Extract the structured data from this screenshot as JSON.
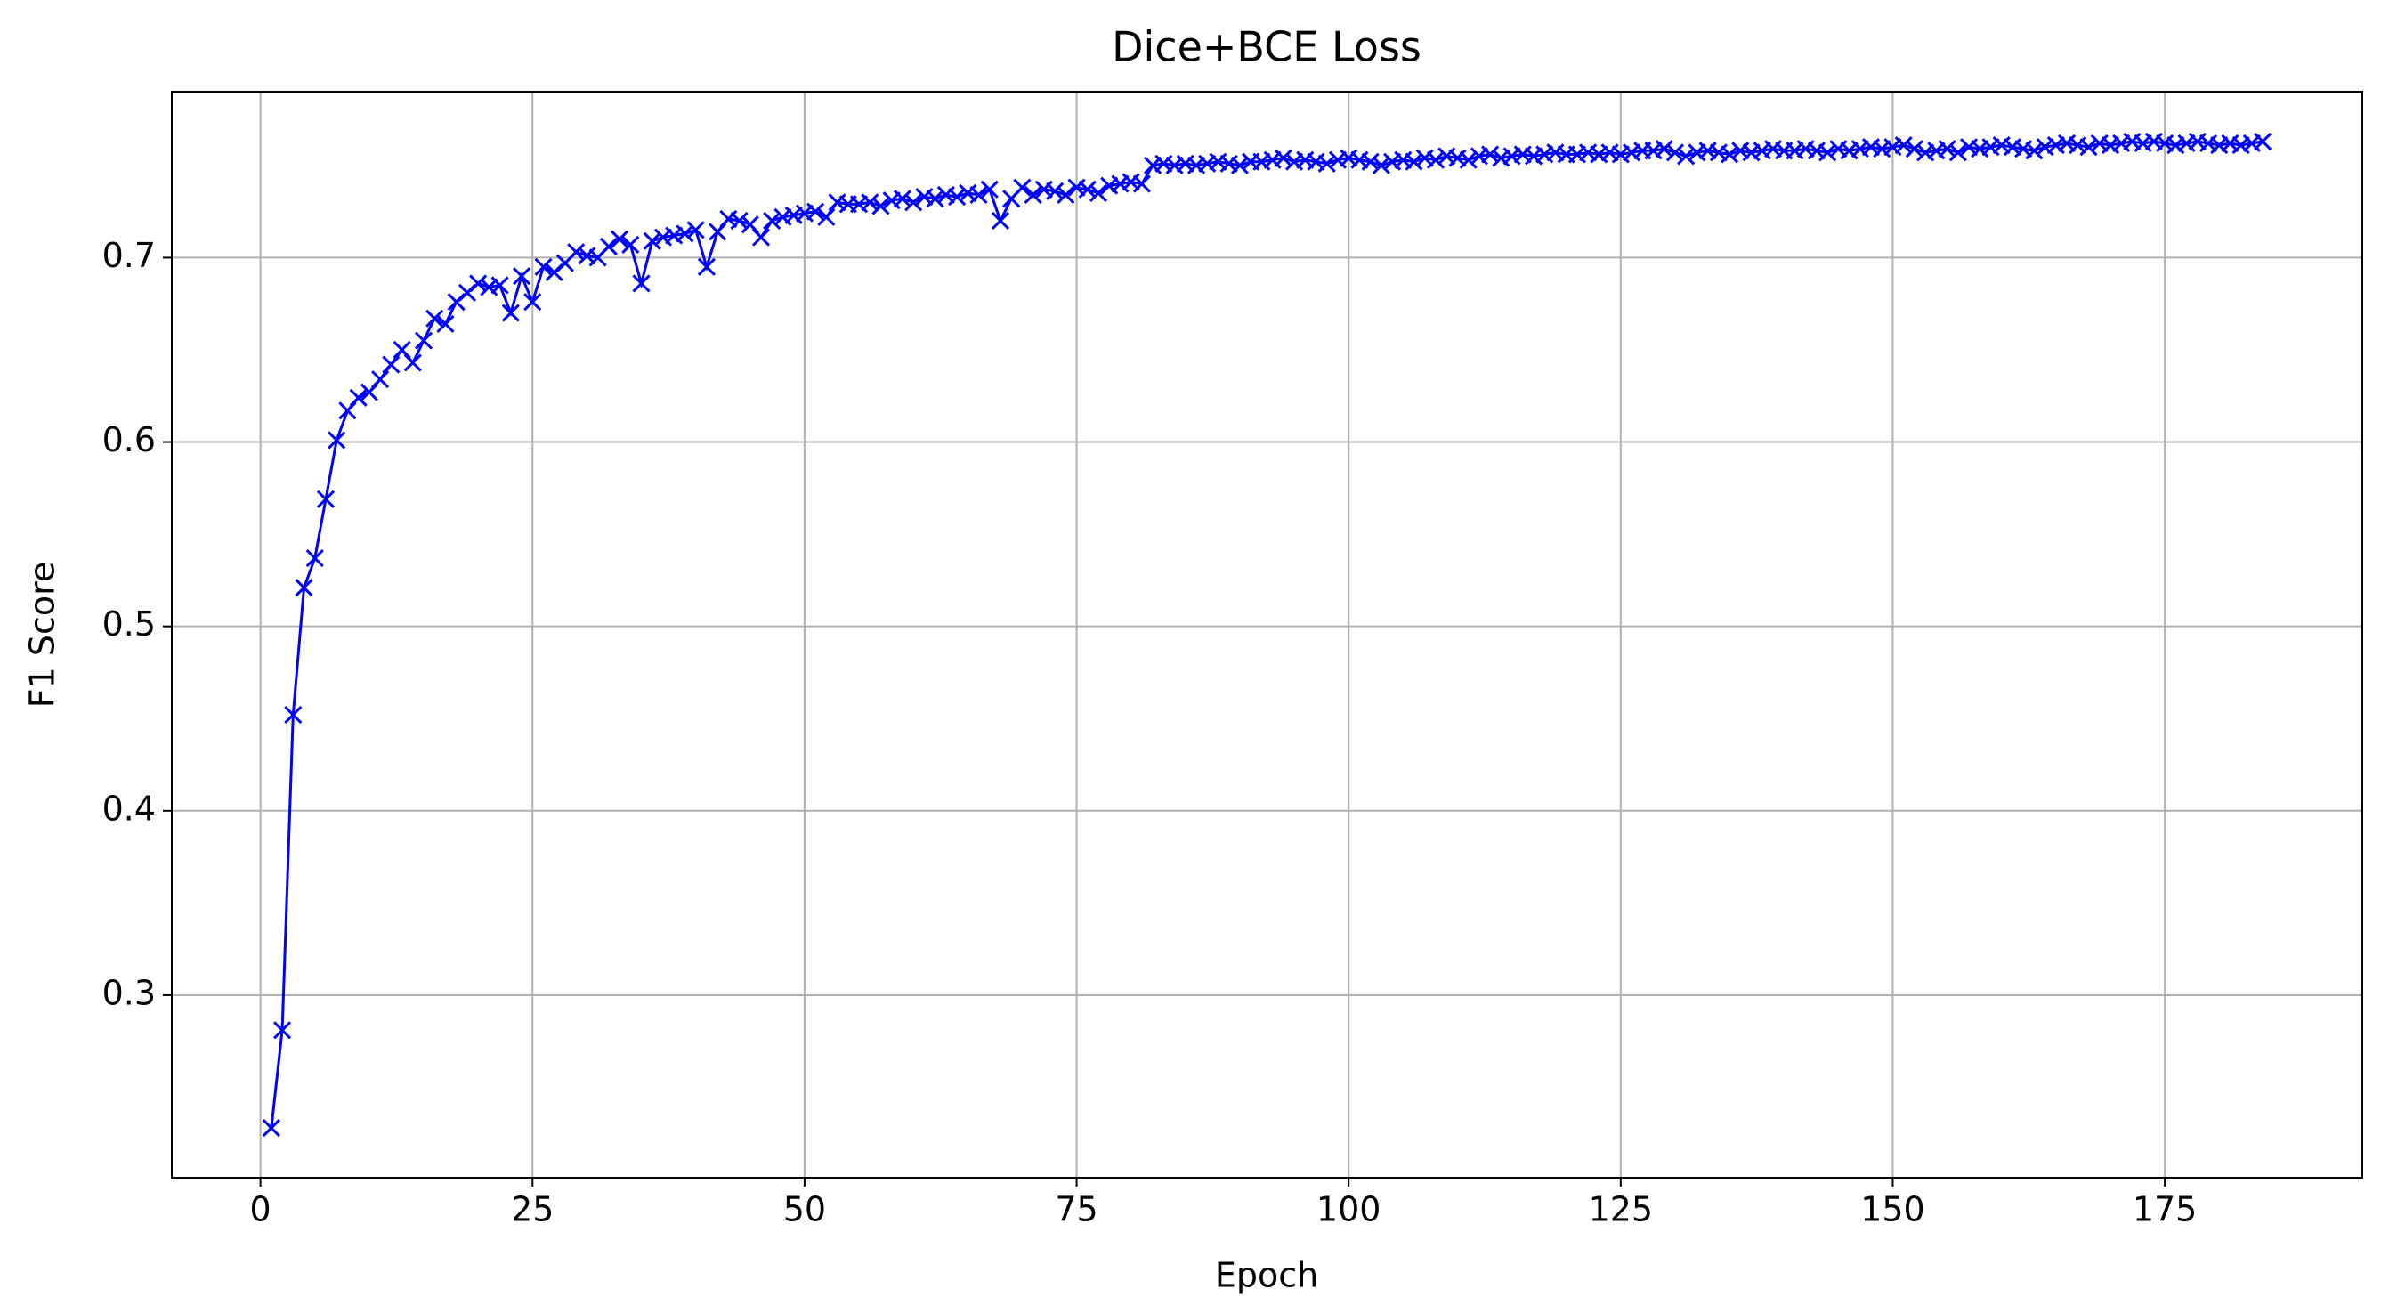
{
  "chart_data": {
    "type": "line",
    "title": "Dice+BCE Loss",
    "x_label": "Epoch",
    "y_label": "F1 Score",
    "color": "#0000ff",
    "marker": "x",
    "grid": true,
    "xlim": [
      -8.15,
      193.15
    ],
    "ylim": [
      0.201,
      0.79
    ],
    "xticks": [
      0,
      25,
      50,
      75,
      100,
      125,
      150,
      175
    ],
    "yticks": [
      0.3,
      0.4,
      0.5,
      0.6,
      0.7
    ],
    "x": [
      1,
      2,
      3,
      4,
      5,
      6,
      7,
      8,
      9,
      10,
      11,
      12,
      13,
      14,
      15,
      16,
      17,
      18,
      19,
      20,
      21,
      22,
      23,
      24,
      25,
      26,
      27,
      28,
      29,
      30,
      31,
      32,
      33,
      34,
      35,
      36,
      37,
      38,
      39,
      40,
      41,
      42,
      43,
      44,
      45,
      46,
      47,
      48,
      49,
      50,
      51,
      52,
      53,
      54,
      55,
      56,
      57,
      58,
      59,
      60,
      61,
      62,
      63,
      64,
      65,
      66,
      67,
      68,
      69,
      70,
      71,
      72,
      73,
      74,
      75,
      76,
      77,
      78,
      79,
      80,
      81,
      82,
      83,
      84,
      85,
      86,
      87,
      88,
      89,
      90,
      91,
      92,
      93,
      94,
      95,
      96,
      97,
      98,
      99,
      100,
      101,
      102,
      103,
      104,
      105,
      106,
      107,
      108,
      109,
      110,
      111,
      112,
      113,
      114,
      115,
      116,
      117,
      118,
      119,
      120,
      121,
      122,
      123,
      124,
      125,
      126,
      127,
      128,
      129,
      130,
      131,
      132,
      133,
      134,
      135,
      136,
      137,
      138,
      139,
      140,
      141,
      142,
      143,
      144,
      145,
      146,
      147,
      148,
      149,
      150,
      151,
      152,
      153,
      154,
      155,
      156,
      157,
      158,
      159,
      160,
      161,
      162,
      163,
      164,
      165,
      166,
      167,
      168,
      169,
      170,
      171,
      172,
      173,
      174,
      175,
      176,
      177,
      178,
      179,
      180,
      181,
      182,
      183,
      184
    ],
    "values": [
      0.228,
      0.281,
      0.452,
      0.521,
      0.537,
      0.569,
      0.601,
      0.617,
      0.624,
      0.627,
      0.634,
      0.642,
      0.65,
      0.643,
      0.655,
      0.667,
      0.664,
      0.676,
      0.681,
      0.686,
      0.684,
      0.685,
      0.67,
      0.69,
      0.676,
      0.695,
      0.692,
      0.697,
      0.703,
      0.701,
      0.7,
      0.706,
      0.71,
      0.707,
      0.686,
      0.709,
      0.711,
      0.712,
      0.713,
      0.715,
      0.695,
      0.714,
      0.721,
      0.72,
      0.718,
      0.711,
      0.72,
      0.722,
      0.723,
      0.724,
      0.725,
      0.722,
      0.73,
      0.729,
      0.729,
      0.73,
      0.728,
      0.731,
      0.732,
      0.73,
      0.733,
      0.732,
      0.734,
      0.733,
      0.735,
      0.734,
      0.737,
      0.72,
      0.732,
      0.738,
      0.734,
      0.737,
      0.736,
      0.734,
      0.738,
      0.737,
      0.735,
      0.739,
      0.74,
      0.741,
      0.74,
      0.75,
      0.751,
      0.75,
      0.751,
      0.75,
      0.751,
      0.752,
      0.751,
      0.75,
      0.752,
      0.752,
      0.753,
      0.754,
      0.752,
      0.753,
      0.752,
      0.751,
      0.753,
      0.754,
      0.753,
      0.752,
      0.75,
      0.752,
      0.753,
      0.752,
      0.754,
      0.753,
      0.755,
      0.754,
      0.753,
      0.755,
      0.756,
      0.754,
      0.755,
      0.756,
      0.755,
      0.756,
      0.757,
      0.756,
      0.756,
      0.757,
      0.756,
      0.757,
      0.756,
      0.757,
      0.758,
      0.758,
      0.759,
      0.757,
      0.755,
      0.757,
      0.758,
      0.757,
      0.756,
      0.758,
      0.757,
      0.758,
      0.759,
      0.758,
      0.758,
      0.759,
      0.758,
      0.757,
      0.759,
      0.758,
      0.759,
      0.76,
      0.759,
      0.76,
      0.761,
      0.759,
      0.757,
      0.758,
      0.759,
      0.757,
      0.76,
      0.759,
      0.76,
      0.761,
      0.76,
      0.759,
      0.758,
      0.76,
      0.761,
      0.762,
      0.761,
      0.76,
      0.762,
      0.761,
      0.762,
      0.763,
      0.762,
      0.763,
      0.762,
      0.761,
      0.762,
      0.763,
      0.762,
      0.761,
      0.762,
      0.761,
      0.762,
      0.763
    ]
  }
}
